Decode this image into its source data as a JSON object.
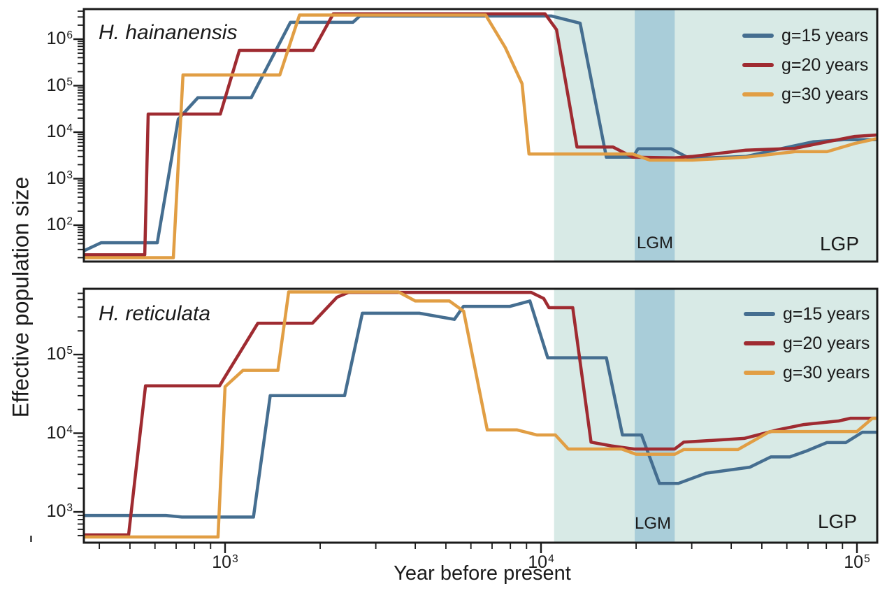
{
  "chart_data": [
    {
      "type": "line",
      "panel": "top",
      "title": "H. hainanensis",
      "xlabel": "Year before present",
      "ylabel": "Effective population size",
      "x_scale": "log10",
      "y_scale": "log10",
      "x_range_years": [
        357,
        116000
      ],
      "y_range": [
        16,
        4400000
      ],
      "x_tick_exponents": [
        3,
        4,
        5
      ],
      "y_tick_exponents": [
        2,
        3,
        4,
        5,
        6
      ],
      "grid": false,
      "legend_position": "top-right",
      "regions": [
        {
          "name": "LGP",
          "label": "LGP",
          "x_start_years": 11000,
          "x_end_years": 116000,
          "color": "#d8eae6"
        },
        {
          "name": "LGM",
          "label": "LGM",
          "x_start_years": 19800,
          "x_end_years": 26500,
          "color": "#a9cdd9"
        }
      ],
      "series": [
        {
          "label": "g=15 years",
          "color": "#456e90",
          "points": [
            [
              357,
              28
            ],
            [
              405,
              42
            ],
            [
              610,
              42
            ],
            [
              711,
              19000
            ],
            [
              820,
              55000
            ],
            [
              1210,
              55000
            ],
            [
              1610,
              2300000
            ],
            [
              2540,
              2300000
            ],
            [
              2670,
              3150000
            ],
            [
              10800,
              3150000
            ],
            [
              13300,
              2200000
            ],
            [
              16100,
              2900
            ],
            [
              19500,
              2900
            ],
            [
              20300,
              4400
            ],
            [
              25800,
              4400
            ],
            [
              29300,
              2800
            ],
            [
              33300,
              2800
            ],
            [
              44500,
              3000
            ],
            [
              57400,
              4400
            ],
            [
              72600,
              6200
            ],
            [
              90800,
              6900
            ],
            [
              116000,
              6900
            ]
          ]
        },
        {
          "label": "g=20 years",
          "color": "#9f2b31",
          "points": [
            [
              357,
              23
            ],
            [
              557,
              23
            ],
            [
              571,
              24500
            ],
            [
              966,
              24500
            ],
            [
              1110,
              575000
            ],
            [
              1900,
              575000
            ],
            [
              2200,
              3500000
            ],
            [
              10300,
              3500000
            ],
            [
              11200,
              1600000
            ],
            [
              13000,
              4800
            ],
            [
              16900,
              4800
            ],
            [
              19500,
              2900
            ],
            [
              26500,
              2800
            ],
            [
              30000,
              3000
            ],
            [
              44500,
              4100
            ],
            [
              63600,
              4500
            ],
            [
              80400,
              6200
            ],
            [
              98400,
              8100
            ],
            [
              116000,
              8700
            ]
          ]
        },
        {
          "label": "g=30 years",
          "color": "#e19e44",
          "points": [
            [
              357,
              20
            ],
            [
              686,
              20
            ],
            [
              736,
              170000
            ],
            [
              1490,
              170000
            ],
            [
              1720,
              3300000
            ],
            [
              6680,
              3300000
            ],
            [
              7710,
              660000
            ],
            [
              8710,
              110000
            ],
            [
              9160,
              3400
            ],
            [
              19500,
              3400
            ],
            [
              22100,
              2500
            ],
            [
              30100,
              2500
            ],
            [
              44500,
              2900
            ],
            [
              63600,
              3800
            ],
            [
              80400,
              3800
            ],
            [
              98400,
              5700
            ],
            [
              116000,
              7300
            ]
          ]
        }
      ]
    },
    {
      "type": "line",
      "panel": "bottom",
      "title": "H. reticulata",
      "xlabel": "Year before present",
      "ylabel": "Effective population size",
      "x_scale": "log10",
      "y_scale": "log10",
      "x_range_years": [
        357,
        116000
      ],
      "y_range": [
        406,
        685000
      ],
      "x_tick_exponents": [
        3,
        4,
        5
      ],
      "y_tick_exponents": [
        3,
        4,
        5
      ],
      "grid": false,
      "legend_position": "top-right",
      "regions": [
        {
          "name": "LGP",
          "label": "LGP",
          "x_start_years": 11000,
          "x_end_years": 116000,
          "color": "#d8eae6"
        },
        {
          "name": "LGM",
          "label": "LGM",
          "x_start_years": 19800,
          "x_end_years": 26500,
          "color": "#a9cdd9"
        }
      ],
      "series": [
        {
          "label": "g=15 years",
          "color": "#456e90",
          "points": [
            [
              357,
              900
            ],
            [
              650,
              900
            ],
            [
              730,
              860
            ],
            [
              1230,
              860
            ],
            [
              1390,
              30000
            ],
            [
              2390,
              30000
            ],
            [
              2720,
              335000
            ],
            [
              4120,
              335000
            ],
            [
              5320,
              280000
            ],
            [
              5680,
              410000
            ],
            [
              7980,
              410000
            ],
            [
              9220,
              480000
            ],
            [
              10500,
              91000
            ],
            [
              16100,
              91000
            ],
            [
              18100,
              9500
            ],
            [
              20800,
              9500
            ],
            [
              23700,
              2300
            ],
            [
              27200,
              2300
            ],
            [
              33300,
              3100
            ],
            [
              45800,
              3700
            ],
            [
              53400,
              5000
            ],
            [
              61300,
              5000
            ],
            [
              68900,
              5900
            ],
            [
              80300,
              7600
            ],
            [
              92200,
              7600
            ],
            [
              104000,
              10300
            ],
            [
              116000,
              10300
            ]
          ]
        },
        {
          "label": "g=20 years",
          "color": "#9f2b31",
          "points": [
            [
              357,
              510
            ],
            [
              495,
              510
            ],
            [
              560,
              40000
            ],
            [
              960,
              40000
            ],
            [
              1270,
              250000
            ],
            [
              1890,
              250000
            ],
            [
              2260,
              535000
            ],
            [
              2460,
              617000
            ],
            [
              9310,
              617000
            ],
            [
              10200,
              515000
            ],
            [
              10600,
              394000
            ],
            [
              12600,
              394000
            ],
            [
              14400,
              7700
            ],
            [
              16700,
              6900
            ],
            [
              19700,
              6300
            ],
            [
              26500,
              6300
            ],
            [
              28300,
              7700
            ],
            [
              44000,
              8600
            ],
            [
              56000,
              11000
            ],
            [
              67900,
              12900
            ],
            [
              87500,
              14300
            ],
            [
              95500,
              15500
            ],
            [
              116000,
              15500
            ]
          ]
        },
        {
          "label": "g=30 years",
          "color": "#e19e44",
          "points": [
            [
              357,
              480
            ],
            [
              950,
              480
            ],
            [
              1000,
              39000
            ],
            [
              1140,
              63000
            ],
            [
              1470,
              63000
            ],
            [
              1590,
              625000
            ],
            [
              3540,
              625000
            ],
            [
              4000,
              480000
            ],
            [
              5130,
              480000
            ],
            [
              5690,
              355000
            ],
            [
              6760,
              11000
            ],
            [
              8400,
              11000
            ],
            [
              9700,
              9500
            ],
            [
              11100,
              9500
            ],
            [
              12200,
              6300
            ],
            [
              18000,
              6300
            ],
            [
              20000,
              5400
            ],
            [
              26500,
              5400
            ],
            [
              28300,
              6200
            ],
            [
              42000,
              6200
            ],
            [
              53000,
              10500
            ],
            [
              100000,
              10500
            ],
            [
              112000,
              15500
            ],
            [
              116000,
              15500
            ]
          ]
        }
      ]
    }
  ]
}
